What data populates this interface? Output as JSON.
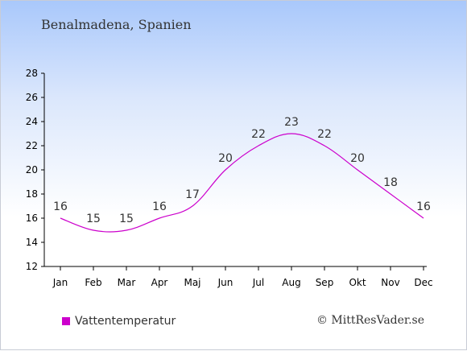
{
  "header": {
    "title": "Benalmadena, Spanien"
  },
  "legend": {
    "label": "Vattentemperatur",
    "color": "#cc00cc"
  },
  "footer": {
    "credit": "© MittResVader.se"
  },
  "chart_data": {
    "type": "line",
    "title": "Benalmadena, Spanien",
    "xlabel": "",
    "ylabel": "",
    "categories": [
      "Jan",
      "Feb",
      "Mar",
      "Apr",
      "Maj",
      "Jun",
      "Jul",
      "Aug",
      "Sep",
      "Okt",
      "Nov",
      "Dec"
    ],
    "series": [
      {
        "name": "Vattentemperatur",
        "color": "#cc00cc",
        "values": [
          16,
          15,
          15,
          16,
          17,
          20,
          22,
          23,
          22,
          20,
          18,
          16
        ]
      }
    ],
    "ylim": [
      12,
      28
    ],
    "yticks": [
      12,
      14,
      16,
      18,
      20,
      22,
      24,
      26,
      28
    ],
    "grid": false,
    "legend_position": "bottom-left"
  }
}
